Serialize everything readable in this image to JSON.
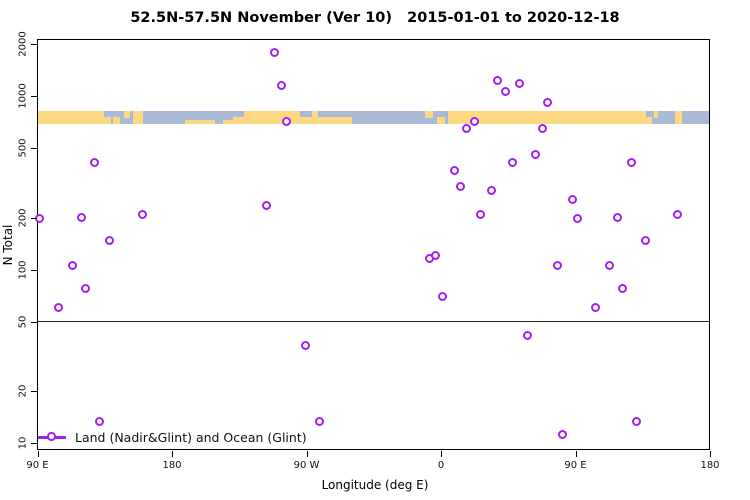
{
  "title": "52.5N-57.5N November (Ver 10)   2015-01-01 to 2020-12-18",
  "chart_data": {
    "type": "scatter",
    "title": "52.5N-57.5N November (Ver 10)   2015-01-01 to 2020-12-18",
    "xlabel": "Longitude (deg E)",
    "ylabel": "N Total",
    "x_axis": {
      "range": [
        90,
        540
      ],
      "ticks": [
        90,
        180,
        270,
        360,
        450,
        540
      ],
      "tick_labels": [
        "90 E",
        "180",
        "90 W",
        "0",
        "90 E",
        "180"
      ]
    },
    "y_axis": {
      "scale": "log",
      "range": [
        9,
        2400
      ],
      "ticks": [
        10,
        20,
        50,
        100,
        200,
        500,
        1000,
        2000
      ],
      "tick_labels": [
        "10",
        "20",
        "50",
        "100",
        "200",
        "500",
        "1000",
        "2000"
      ]
    },
    "reference_line_y": 50,
    "grid": false,
    "legend": {
      "position": "bottom-left",
      "label": "Land (Nadir&Glint) and Ocean (Glint)",
      "marker": "open-circle-on-line"
    },
    "series": [
      {
        "name": "Land (Nadir&Glint) and Ocean (Glint)",
        "marker": "open-circle",
        "color": "#A020F0",
        "points": [
          {
            "lon": 92.0,
            "n": 193
          },
          {
            "lon": 104.5,
            "n": 59
          },
          {
            "lon": 113.6,
            "n": 103
          },
          {
            "lon": 119.9,
            "n": 196
          },
          {
            "lon": 122.8,
            "n": 76
          },
          {
            "lon": 128.6,
            "n": 405
          },
          {
            "lon": 131.9,
            "n": 13
          },
          {
            "lon": 138.3,
            "n": 144
          },
          {
            "lon": 160.7,
            "n": 205
          },
          {
            "lon": 243.6,
            "n": 230
          },
          {
            "lon": 249.1,
            "n": 1760
          },
          {
            "lon": 253.6,
            "n": 1130
          },
          {
            "lon": 257.0,
            "n": 700
          },
          {
            "lon": 269.9,
            "n": 36
          },
          {
            "lon": 279.4,
            "n": 13
          },
          {
            "lon": 352.5,
            "n": 114
          },
          {
            "lon": 356.5,
            "n": 118
          },
          {
            "lon": 361.7,
            "n": 69
          },
          {
            "lon": 369.5,
            "n": 366
          },
          {
            "lon": 373.5,
            "n": 295
          },
          {
            "lon": 377.3,
            "n": 640
          },
          {
            "lon": 382.9,
            "n": 700
          },
          {
            "lon": 386.9,
            "n": 205
          },
          {
            "lon": 394.0,
            "n": 280
          },
          {
            "lon": 398.5,
            "n": 1210
          },
          {
            "lon": 403.4,
            "n": 1045
          },
          {
            "lon": 408.0,
            "n": 405
          },
          {
            "lon": 413.0,
            "n": 1160
          },
          {
            "lon": 418.5,
            "n": 41
          },
          {
            "lon": 423.6,
            "n": 450
          },
          {
            "lon": 428.1,
            "n": 640
          },
          {
            "lon": 431.9,
            "n": 905
          },
          {
            "lon": 438.2,
            "n": 104
          },
          {
            "lon": 441.5,
            "n": 11
          },
          {
            "lon": 448.2,
            "n": 250
          },
          {
            "lon": 452.0,
            "n": 193
          },
          {
            "lon": 463.8,
            "n": 59
          },
          {
            "lon": 473.2,
            "n": 104
          },
          {
            "lon": 478.3,
            "n": 196
          },
          {
            "lon": 482.0,
            "n": 76
          },
          {
            "lon": 487.6,
            "n": 405
          },
          {
            "lon": 491.0,
            "n": 13
          },
          {
            "lon": 497.0,
            "n": 144
          },
          {
            "lon": 518.9,
            "n": 203
          }
        ]
      }
    ],
    "map_band": {
      "description": "land-ocean strip for 52.5N-57.5N",
      "n_top": 815,
      "n_bottom": 685,
      "land_color": "#FCD982",
      "ocean_color": "#A9BAD6",
      "land_segments": [
        {
          "lon0": 90.0,
          "lon1": 134.5,
          "v": "full"
        },
        {
          "lon0": 134.5,
          "lon1": 139.2,
          "v": "bottom"
        },
        {
          "lon0": 140.5,
          "lon1": 145.2,
          "v": "bottom"
        },
        {
          "lon0": 147.9,
          "lon1": 151.9,
          "v": "top"
        },
        {
          "lon0": 153.9,
          "lon1": 160.6,
          "v": "full"
        },
        {
          "lon0": 188.7,
          "lon1": 208.8,
          "v": "sliver-bottom"
        },
        {
          "lon0": 214.0,
          "lon1": 221.0,
          "v": "sliver-bottom"
        },
        {
          "lon0": 221.0,
          "lon1": 228.0,
          "v": "bottom"
        },
        {
          "lon0": 228.0,
          "lon1": 265.7,
          "v": "full"
        },
        {
          "lon0": 265.7,
          "lon1": 274.0,
          "v": "bottom"
        },
        {
          "lon0": 274.0,
          "lon1": 278.0,
          "v": "full"
        },
        {
          "lon0": 278.0,
          "lon1": 300.5,
          "v": "bottom"
        },
        {
          "lon0": 349.3,
          "lon1": 354.7,
          "v": "top"
        },
        {
          "lon0": 357.4,
          "lon1": 362.7,
          "v": "bottom"
        },
        {
          "lon0": 364.7,
          "lon1": 497.2,
          "v": "full"
        },
        {
          "lon0": 497.2,
          "lon1": 501.2,
          "v": "bottom"
        },
        {
          "lon0": 502.5,
          "lon1": 505.2,
          "v": "top"
        },
        {
          "lon0": 516.6,
          "lon1": 521.3,
          "v": "full"
        }
      ]
    },
    "colors": {
      "marker": "#A020F0",
      "land": "#FCD982",
      "ocean": "#A9BAD6",
      "axis": "#000000",
      "reference_line": "#222222"
    }
  }
}
